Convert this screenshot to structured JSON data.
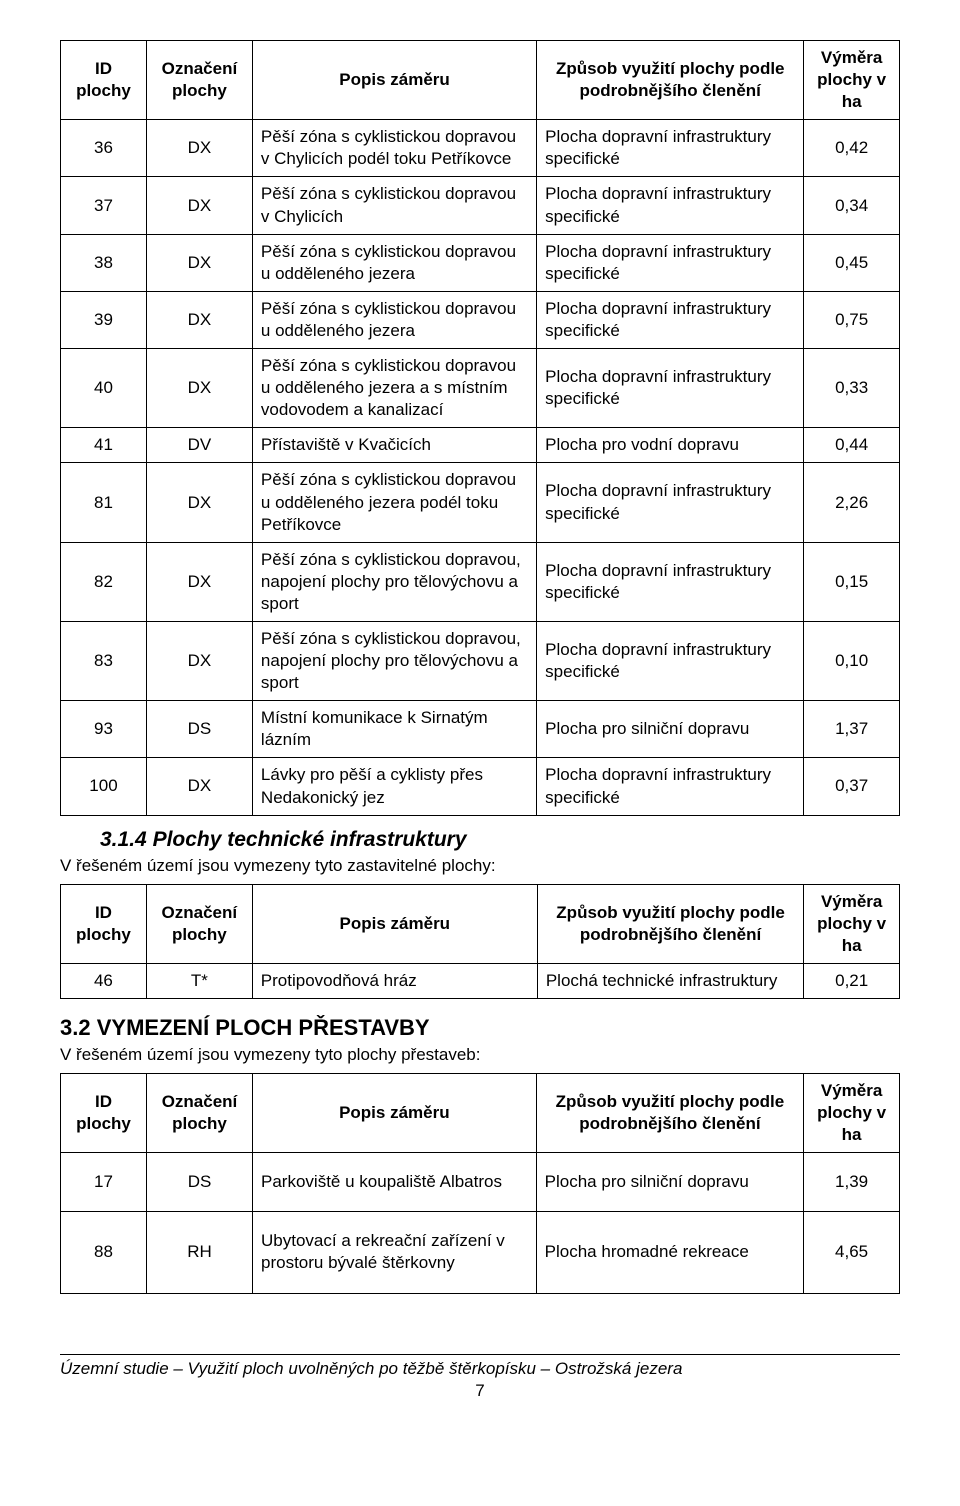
{
  "table1": {
    "headers": [
      "ID plochy",
      "Označení plochy",
      "Popis záměru",
      "Způsob využití plochy podle podrobnějšího členění",
      "Výměra plochy v ha"
    ],
    "rows": [
      [
        "36",
        "DX",
        "Pěší zóna s cyklistickou dopravou v Chylicích podél toku Petříkovce",
        "Plocha dopravní infrastruktury specifické",
        "0,42"
      ],
      [
        "37",
        "DX",
        "Pěší zóna s cyklistickou dopravou v Chylicích",
        "Plocha dopravní infrastruktury specifické",
        "0,34"
      ],
      [
        "38",
        "DX",
        "Pěší zóna s cyklistickou dopravou u odděleného jezera",
        "Plocha dopravní infrastruktury specifické",
        "0,45"
      ],
      [
        "39",
        "DX",
        "Pěší zóna s cyklistickou dopravou u odděleného jezera",
        "Plocha dopravní infrastruktury specifické",
        "0,75"
      ],
      [
        "40",
        "DX",
        "Pěší zóna s cyklistickou dopravou u odděleného jezera a s místním vodovodem a kanalizací",
        "Plocha dopravní infrastruktury specifické",
        "0,33"
      ],
      [
        "41",
        "DV",
        "Přístaviště v Kvačicích",
        "Plocha pro vodní dopravu",
        "0,44"
      ],
      [
        "81",
        "DX",
        "Pěší zóna s cyklistickou dopravou u odděleného jezera podél toku Petříkovce",
        "Plocha dopravní infrastruktury specifické",
        "2,26"
      ],
      [
        "82",
        "DX",
        "Pěší zóna s cyklistickou dopravou, napojení plochy pro tělovýchovu a sport",
        "Plocha dopravní infrastruktury specifické",
        "0,15"
      ],
      [
        "83",
        "DX",
        "Pěší zóna s cyklistickou dopravou, napojení plochy pro tělovýchovu a sport",
        "Plocha dopravní infrastruktury specifické",
        "0,10"
      ],
      [
        "93",
        "DS",
        "Místní komunikace k Sirnatým lázním",
        "Plocha pro silniční dopravu",
        "1,37"
      ],
      [
        "100",
        "DX",
        "Lávky pro pěší a cyklisty přes Nedakonický jez",
        "Plocha dopravní infrastruktury specifické",
        "0,37"
      ]
    ]
  },
  "section314": {
    "number": "3.1.4",
    "title": "Plochy technické infrastruktury",
    "lead": "V řešeném území jsou vymezeny tyto zastavitelné plochy:"
  },
  "table2": {
    "headers": [
      "ID plochy",
      "Označení plochy",
      "Popis záměru",
      "Způsob využití plochy podle podrobnějšího členění",
      "Výměra plochy v ha"
    ],
    "rows": [
      [
        "46",
        "T*",
        "Protipovodňová hráz",
        "Plochá technické infrastruktury",
        "0,21"
      ]
    ]
  },
  "section32": {
    "number": "3.2",
    "title": "VYMEZENÍ PLOCH PŘESTAVBY",
    "lead": "V řešeném území jsou vymezeny tyto plochy přestaveb:"
  },
  "table3": {
    "headers": [
      "ID plochy",
      "Označení plochy",
      "Popis záměru",
      "Způsob využití plochy podle podrobnějšího členění",
      "Výměra plochy v ha"
    ],
    "rows": [
      [
        "17",
        "DS",
        "Parkoviště u koupaliště Albatros",
        "Plocha pro silniční dopravu",
        "1,39"
      ],
      [
        "88",
        "RH",
        "Ubytovací a rekreační zařízení v prostoru bývalé štěrkovny",
        "Plocha hromadné rekreace",
        "4,65"
      ]
    ]
  },
  "footer": {
    "text": "Územní studie – Využití ploch uvolněných po těžbě štěrkopísku – Ostrožská jezera",
    "page": "7"
  }
}
